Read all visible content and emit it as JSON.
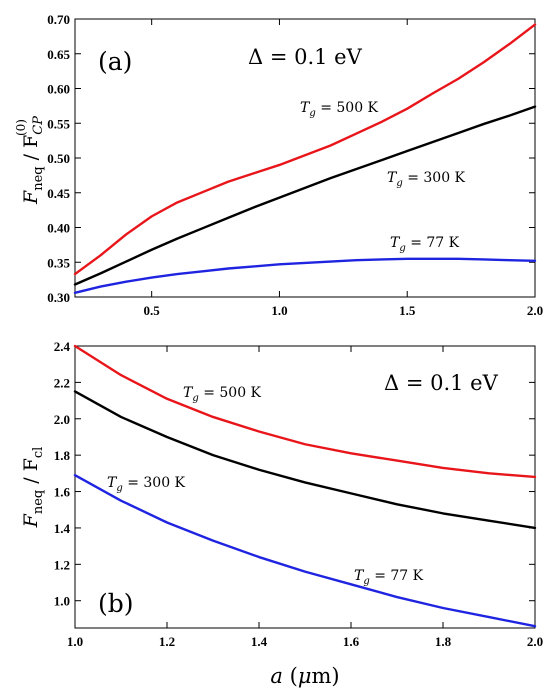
{
  "chart_data": [
    {
      "type": "line",
      "panel_label": "(a)",
      "annotation": "Δ = 0.1 eV",
      "xlabel": "",
      "ylabel": "F_neq / F_CP^(0)",
      "xlim": [
        0.2,
        2.0
      ],
      "ylim": [
        0.3,
        0.7
      ],
      "xticks": [
        "0.5",
        "1.0",
        "1.5",
        "2.0"
      ],
      "yticks": [
        "0.30",
        "0.35",
        "0.40",
        "0.45",
        "0.50",
        "0.55",
        "0.60",
        "0.65",
        "0.70"
      ],
      "grid": false,
      "series": [
        {
          "name": "T_g = 500 K",
          "color": "#e8161b",
          "x": [
            0.2,
            0.3,
            0.4,
            0.5,
            0.6,
            0.7,
            0.8,
            0.9,
            1.0,
            1.1,
            1.2,
            1.3,
            1.4,
            1.5,
            1.6,
            1.7,
            1.8,
            1.9,
            2.0
          ],
          "y": [
            0.333,
            0.36,
            0.39,
            0.416,
            0.436,
            0.451,
            0.466,
            0.478,
            0.49,
            0.504,
            0.518,
            0.535,
            0.552,
            0.571,
            0.593,
            0.614,
            0.638,
            0.664,
            0.692
          ]
        },
        {
          "name": "T_g = 300 K",
          "color": "#000000",
          "x": [
            0.2,
            0.3,
            0.4,
            0.5,
            0.6,
            0.7,
            0.8,
            0.9,
            1.0,
            1.1,
            1.2,
            1.3,
            1.4,
            1.5,
            1.6,
            1.7,
            1.8,
            1.9,
            2.0
          ],
          "y": [
            0.318,
            0.334,
            0.351,
            0.368,
            0.384,
            0.399,
            0.414,
            0.429,
            0.443,
            0.457,
            0.471,
            0.484,
            0.497,
            0.51,
            0.523,
            0.536,
            0.549,
            0.561,
            0.574
          ]
        },
        {
          "name": "T_g = 77 K",
          "color": "#1f24e0",
          "x": [
            0.2,
            0.3,
            0.4,
            0.5,
            0.6,
            0.7,
            0.8,
            0.9,
            1.0,
            1.1,
            1.2,
            1.3,
            1.4,
            1.5,
            1.6,
            1.7,
            1.8,
            1.9,
            2.0
          ],
          "y": [
            0.306,
            0.315,
            0.322,
            0.328,
            0.333,
            0.337,
            0.341,
            0.344,
            0.347,
            0.349,
            0.351,
            0.353,
            0.354,
            0.355,
            0.355,
            0.355,
            0.354,
            0.353,
            0.352
          ]
        }
      ]
    },
    {
      "type": "line",
      "panel_label": "(b)",
      "annotation": "Δ = 0.1 eV",
      "xlabel": "a (μm)",
      "ylabel": "F_neq / F_cl",
      "xlim": [
        1.0,
        2.0
      ],
      "ylim": [
        0.85,
        2.4
      ],
      "xticks": [
        "1.0",
        "1.2",
        "1.4",
        "1.6",
        "1.8",
        "2.0"
      ],
      "yticks": [
        "1.0",
        "1.2",
        "1.4",
        "1.6",
        "1.8",
        "2.0",
        "2.2",
        "2.4"
      ],
      "grid": false,
      "series": [
        {
          "name": "T_g = 500 K",
          "color": "#e8161b",
          "x": [
            1.0,
            1.1,
            1.2,
            1.3,
            1.4,
            1.5,
            1.6,
            1.7,
            1.8,
            1.9,
            2.0
          ],
          "y": [
            2.4,
            2.24,
            2.11,
            2.01,
            1.93,
            1.86,
            1.81,
            1.77,
            1.73,
            1.7,
            1.68
          ]
        },
        {
          "name": "T_g = 300 K",
          "color": "#000000",
          "x": [
            1.0,
            1.1,
            1.2,
            1.3,
            1.4,
            1.5,
            1.6,
            1.7,
            1.8,
            1.9,
            2.0
          ],
          "y": [
            2.15,
            2.01,
            1.9,
            1.8,
            1.72,
            1.65,
            1.59,
            1.53,
            1.48,
            1.44,
            1.4
          ]
        },
        {
          "name": "T_g = 77 K",
          "color": "#1f24e0",
          "x": [
            1.0,
            1.1,
            1.2,
            1.3,
            1.4,
            1.5,
            1.6,
            1.7,
            1.8,
            1.9,
            2.0
          ],
          "y": [
            1.69,
            1.55,
            1.43,
            1.33,
            1.24,
            1.16,
            1.09,
            1.02,
            0.96,
            0.91,
            0.86
          ]
        }
      ]
    }
  ]
}
